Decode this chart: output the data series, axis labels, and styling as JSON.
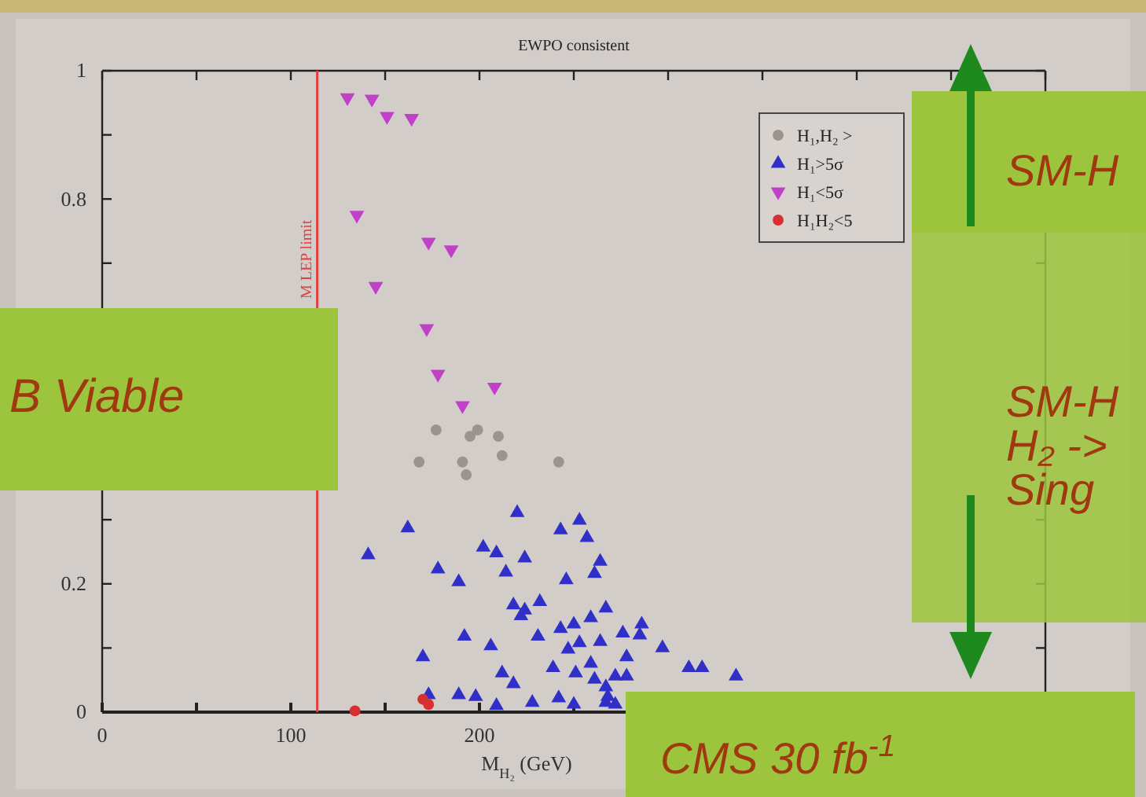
{
  "chart_data": {
    "type": "scatter",
    "title": "EWPO consistent",
    "xlabel": "M$_{H₂}$ (GeV)",
    "xlim": [
      0,
      500
    ],
    "ylim": [
      0,
      1
    ],
    "xticks": [
      0,
      {
        "value": 50,
        "label": null
      },
      100,
      {
        "value": 150,
        "label": null
      },
      200,
      {
        "value": 250,
        "label": null
      },
      {
        "value": 300,
        "label": null
      },
      {
        "value": 350,
        "label": null
      },
      {
        "value": 400,
        "label": null
      },
      {
        "value": 450,
        "label": null
      },
      {
        "value": 500,
        "label": null
      }
    ],
    "yticks": [
      0,
      {
        "value": 0.1,
        "label": null
      },
      0.2,
      {
        "value": 0.3,
        "label": null
      },
      {
        "value": 0.7,
        "label": null
      },
      0.8,
      {
        "value": 0.9,
        "label": null
      },
      1
    ],
    "legend": "top right",
    "grid": false,
    "ref_lines": [
      {
        "axis": "x",
        "value": 114,
        "label": "M LEP limit",
        "color": "#e04040"
      }
    ],
    "annotations": [
      "B Viable",
      "SM-H",
      "SM-H\nH₂ ->\nSing",
      "CMS 30 fb$^{-1}$"
    ],
    "series": [
      {
        "name": "H₁,H₂ >",
        "color": "#9a9490",
        "marker": "circle",
        "x": [
          177,
          199,
          195,
          210,
          212,
          168,
          191,
          193,
          242
        ],
        "values": [
          0.44,
          0.44,
          0.43,
          0.43,
          0.4,
          0.39,
          0.39,
          0.37,
          0.39
        ]
      },
      {
        "name": "H₁>5σ",
        "color": "#3030c8",
        "marker": "triangle",
        "x": [
          141,
          162,
          220,
          243,
          253,
          257,
          202,
          209,
          224,
          178,
          189,
          214,
          264,
          261,
          246,
          218,
          224,
          232,
          222,
          267,
          192,
          206,
          231,
          243,
          250,
          259,
          247,
          253,
          264,
          276,
          285,
          286,
          278,
          170,
          259,
          212,
          218,
          239,
          251,
          261,
          272,
          189,
          198,
          173,
          228,
          242,
          250,
          268,
          209,
          272,
          297,
          311,
          318,
          336,
          267,
          267,
          278
        ],
        "values": [
          0.245,
          0.287,
          0.311,
          0.284,
          0.299,
          0.272,
          0.257,
          0.248,
          0.24,
          0.223,
          0.203,
          0.218,
          0.235,
          0.216,
          0.206,
          0.167,
          0.159,
          0.172,
          0.15,
          0.162,
          0.118,
          0.103,
          0.118,
          0.13,
          0.137,
          0.147,
          0.098,
          0.108,
          0.11,
          0.123,
          0.12,
          0.137,
          0.086,
          0.086,
          0.076,
          0.061,
          0.044,
          0.069,
          0.061,
          0.051,
          0.056,
          0.027,
          0.024,
          0.027,
          0.015,
          0.022,
          0.012,
          0.024,
          0.01,
          0.012,
          0.1,
          0.069,
          0.069,
          0.056,
          0.039,
          0.015,
          0.056
        ]
      },
      {
        "name": "H₁<5σ",
        "color": "#c040c8",
        "marker": "triangle-down",
        "x": [
          130,
          143,
          151,
          164,
          135,
          173,
          185,
          145,
          172,
          178,
          208,
          191
        ],
        "values": [
          0.958,
          0.956,
          0.929,
          0.926,
          0.775,
          0.733,
          0.721,
          0.664,
          0.598,
          0.527,
          0.507,
          0.478
        ]
      },
      {
        "name": "H₁H₂<5",
        "color": "#d83030",
        "marker": "circle",
        "x": [
          134,
          170,
          173
        ],
        "values": [
          0.002,
          0.02,
          0.012
        ]
      }
    ]
  }
}
